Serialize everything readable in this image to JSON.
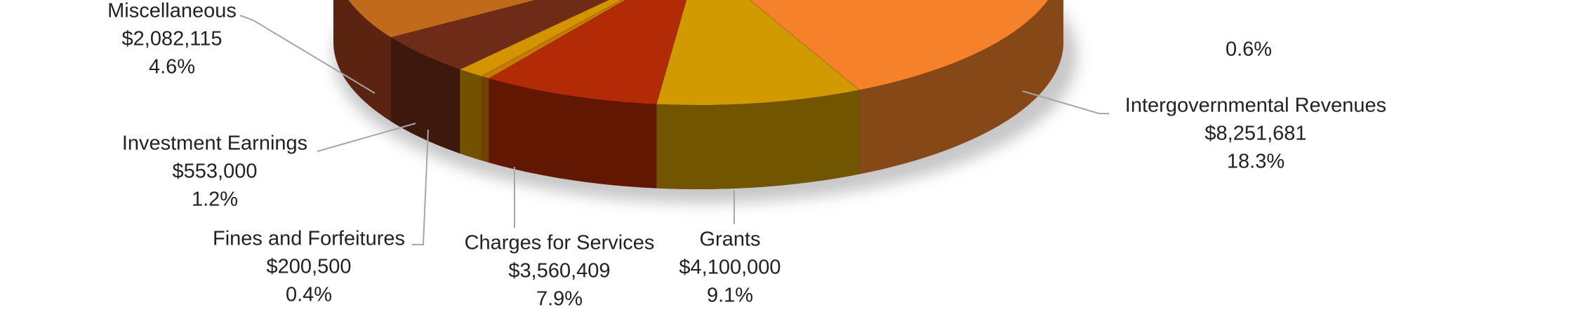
{
  "chart_data": {
    "type": "pie3d",
    "categories": [
      null,
      "Intergovernmental Revenues",
      "Grants",
      "Charges for Services",
      "Fines and Forfeitures",
      "Investment Earnings",
      "Miscellaneous"
    ],
    "values": [
      null,
      8251681,
      4100000,
      3560409,
      200500,
      553000,
      2082115
    ],
    "value_labels": [
      null,
      "$8,251,681",
      "$4,100,000",
      "$3,560,409",
      "$200,500",
      "$553,000",
      "$2,082,115"
    ],
    "percents": [
      0.6,
      18.3,
      9.1,
      7.9,
      0.4,
      1.2,
      4.6
    ],
    "percent_labels": [
      "0.6%",
      "18.3%",
      "9.1%",
      "7.9%",
      "0.4%",
      "1.2%",
      "4.6%"
    ],
    "colors": [
      "#e3a03c",
      "#f5822a",
      "#d09a00",
      "#b22a06",
      "#c97800",
      "#d39400",
      "#6e2c18"
    ]
  }
}
